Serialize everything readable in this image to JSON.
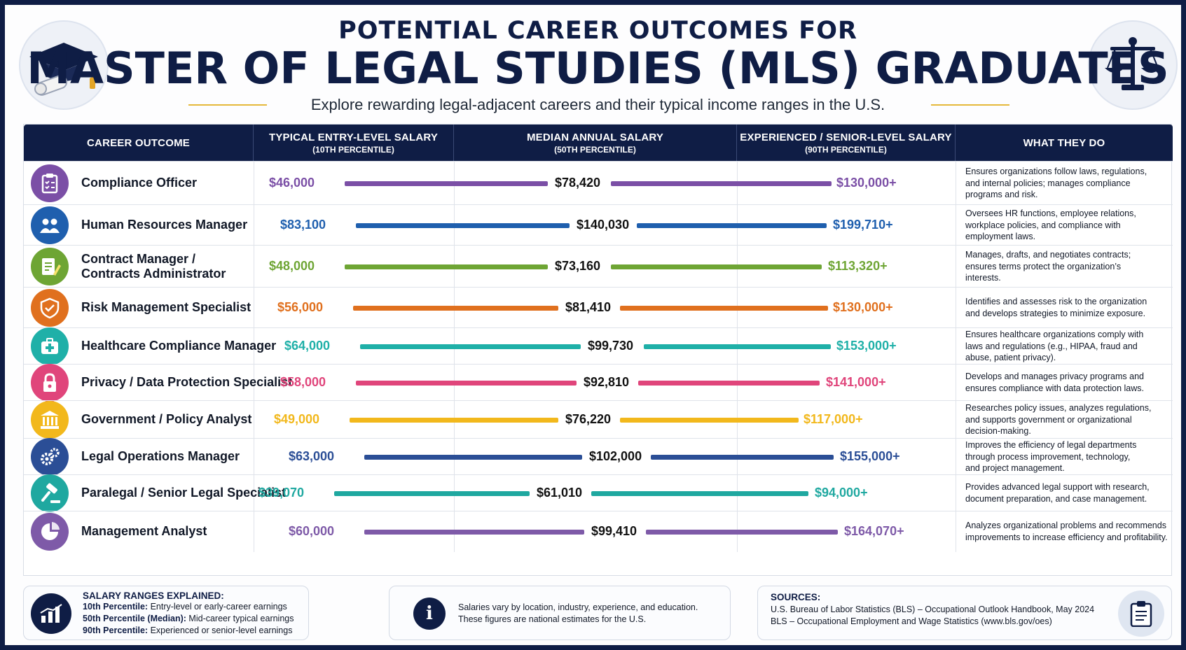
{
  "header": {
    "title_line1": "POTENTIAL CAREER OUTCOMES FOR",
    "title_line2": "MASTER OF LEGAL STUDIES (MLS) GRADUATES",
    "subtitle": "Explore rewarding legal-adjacent careers and their typical income ranges in the U.S.",
    "left_icon": "graduation-cap-diploma-icon",
    "right_icon": "scales-of-justice-icon"
  },
  "columns": {
    "career": "CAREER OUTCOME",
    "entry": "TYPICAL ENTRY-LEVEL SALARY",
    "entry_sub": "(10TH PERCENTILE)",
    "median": "MEDIAN ANNUAL SALARY",
    "median_sub": "(50TH PERCENTILE)",
    "senior": "EXPERIENCED / SENIOR-LEVEL SALARY",
    "senior_sub": "(90TH PERCENTILE)",
    "what": "WHAT THEY DO"
  },
  "rows": [
    {
      "career": "Compliance Officer",
      "career2": "",
      "entry": "$46,000",
      "median": "$78,420",
      "senior": "$130,000+",
      "color": "#7b4fa6",
      "icon": "clipboard-checklist-icon",
      "desc": [
        "Ensures organizations follow laws, regulations,",
        "and internal policies; manages compliance",
        "programs and risk."
      ]
    },
    {
      "career": "Human Resources Manager",
      "career2": "",
      "entry": "$83,100",
      "median": "$140,030",
      "senior": "$199,710+",
      "color": "#1f5fae",
      "icon": "people-group-icon",
      "desc": [
        "Oversees HR functions, employee relations,",
        "workplace policies, and compliance with",
        "employment laws."
      ]
    },
    {
      "career": "Contract Manager /",
      "career2": "Contracts Administrator",
      "entry": "$48,000",
      "median": "$73,160",
      "senior": "$113,320+",
      "color": "#6ea534",
      "icon": "document-pen-icon",
      "desc": [
        "Manages, drafts, and negotiates contracts;",
        "ensures terms protect the organization’s",
        "interests."
      ]
    },
    {
      "career": "Risk Management Specialist",
      "career2": "",
      "entry": "$56,000",
      "median": "$81,410",
      "senior": "$130,000+",
      "color": "#e0701e",
      "icon": "shield-check-icon",
      "desc": [
        "Identifies and assesses risk to the organization",
        "and develops strategies to minimize exposure."
      ]
    },
    {
      "career": "Healthcare Compliance Manager",
      "career2": "",
      "entry": "$64,000",
      "median": "$99,730",
      "senior": "$153,000+",
      "color": "#1fb0a8",
      "icon": "medical-kit-icon",
      "desc": [
        "Ensures healthcare organizations comply with",
        "laws and regulations (e.g., HIPAA, fraud and",
        "abuse, patient privacy)."
      ]
    },
    {
      "career": "Privacy / Data Protection Specialist",
      "career2": "",
      "entry": "$58,000",
      "median": "$92,810",
      "senior": "$141,000+",
      "color": "#e0457b",
      "icon": "padlock-icon",
      "desc": [
        "Develops and manages privacy programs and",
        "ensures compliance with data protection laws."
      ]
    },
    {
      "career": "Government / Policy Analyst",
      "career2": "",
      "entry": "$49,000",
      "median": "$76,220",
      "senior": "$117,000+",
      "color": "#f2b81c",
      "icon": "government-building-icon",
      "desc": [
        "Researches policy issues, analyzes regulations,",
        "and supports government or organizational",
        "decision-making."
      ]
    },
    {
      "career": "Legal Operations Manager",
      "career2": "",
      "entry": "$63,000",
      "median": "$102,000",
      "senior": "$155,000+",
      "color": "#2b4e96",
      "icon": "gears-icon",
      "desc": [
        "Improves the efficiency of legal departments",
        "through process improvement, technology,",
        "and project management."
      ]
    },
    {
      "career": "Paralegal / Senior Legal Specialist",
      "career2": "",
      "entry": "$39,070",
      "median": "$61,010",
      "senior": "$94,000+",
      "color": "#1fa8a0",
      "icon": "gavel-icon",
      "desc": [
        "Provides advanced legal support with research,",
        "document preparation, and case management."
      ]
    },
    {
      "career": "Management Analyst",
      "career2": "",
      "entry": "$60,000",
      "median": "$99,410",
      "senior": "$164,070+",
      "color": "#7e5aa8",
      "icon": "pie-chart-icon",
      "desc": [
        "Analyzes organizational problems and recommends",
        "improvements to increase efficiency and profitability."
      ]
    }
  ],
  "chart_data": {
    "type": "table",
    "columns": [
      "CAREER OUTCOME",
      "TYPICAL ENTRY-LEVEL SALARY (10TH PERCENTILE)",
      "MEDIAN ANNUAL SALARY (50TH PERCENTILE)",
      "EXPERIENCED / SENIOR-LEVEL SALARY (90TH PERCENTILE)",
      "WHAT THEY DO"
    ],
    "categories": [
      "Compliance Officer",
      "Human Resources Manager",
      "Contract Manager / Contracts Administrator",
      "Risk Management Specialist",
      "Healthcare Compliance Manager",
      "Privacy / Data Protection Specialist",
      "Government / Policy Analyst",
      "Legal Operations Manager",
      "Paralegal / Senior Legal Specialist",
      "Management Analyst"
    ],
    "series": [
      {
        "name": "TYPICAL ENTRY-LEVEL SALARY",
        "values": [
          46000,
          83100,
          48000,
          56000,
          64000,
          58000,
          49000,
          63000,
          39070,
          60000
        ]
      },
      {
        "name": "MEDIAN ANNUAL SALARY",
        "values": [
          78420,
          140030,
          73160,
          81410,
          99730,
          92810,
          76220,
          102000,
          61010,
          99410
        ]
      },
      {
        "name": "EXPERIENCED / SENIOR-LEVEL SALARY",
        "values": [
          130000,
          199710,
          113320,
          130000,
          153000,
          141000,
          117000,
          155000,
          94000,
          164070
        ]
      }
    ]
  },
  "footer": {
    "explained_title": "SALARY RANGES EXPLAINED:",
    "explained": [
      {
        "label": "10th Percentile:",
        "text": " Entry-level or early-career earnings"
      },
      {
        "label": "50th Percentile (Median):",
        "text": " Mid-career typical earnings"
      },
      {
        "label": "90th Percentile:",
        "text": " Experienced or senior-level earnings"
      }
    ],
    "note_line1": "Salaries vary by location, industry, experience, and education.",
    "note_line2": "These figures are national estimates for the U.S.",
    "sources_title": "SOURCES:",
    "source1": "U.S. Bureau of Labor Statistics (BLS) – Occupational Outlook Handbook, May 2024",
    "source2": "BLS – Occupational Employment and Wage Statistics (www.bls.gov/oes)",
    "chart_icon": "bar-chart-icon",
    "info_icon": "info-icon",
    "sources_icon": "clipboard-icon"
  }
}
